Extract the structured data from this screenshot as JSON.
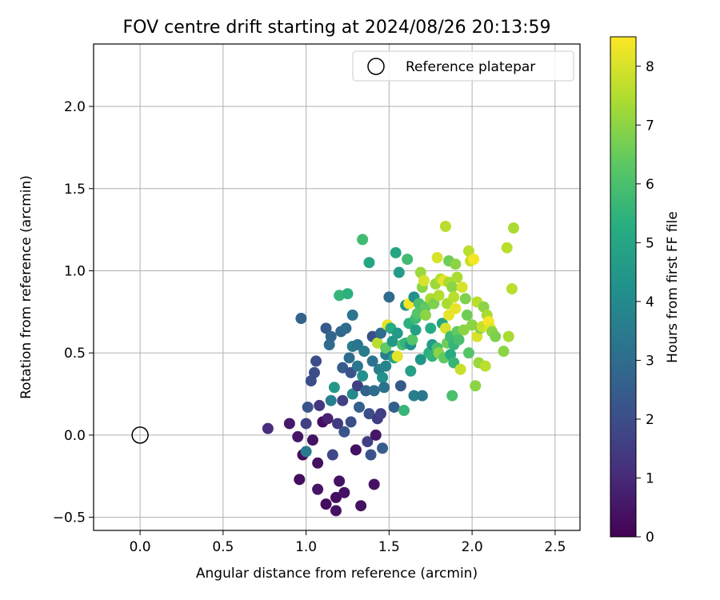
{
  "chart_data": {
    "type": "scatter",
    "title": "FOV centre drift starting at 2024/08/26 20:13:59",
    "xlabel": "Angular distance from reference (arcmin)",
    "ylabel": "Rotation from reference (arcmin)",
    "xlim": [
      -0.28,
      2.65
    ],
    "ylim": [
      -0.58,
      2.38
    ],
    "x_ticks": [
      0.0,
      0.5,
      1.0,
      1.5,
      2.0,
      2.5
    ],
    "x_tick_labels": [
      "0.0",
      "0.5",
      "1.0",
      "1.5",
      "2.0",
      "2.5"
    ],
    "y_ticks": [
      -0.5,
      0.0,
      0.5,
      1.0,
      1.5,
      2.0
    ],
    "y_tick_labels": [
      "−0.5",
      "0.0",
      "0.5",
      "1.0",
      "1.5",
      "2.0"
    ],
    "grid": true,
    "legend": {
      "position": "top-right",
      "entries": [
        {
          "label": "Reference platepar",
          "marker": "open-circle"
        }
      ]
    },
    "reference_point": {
      "x": 0.0,
      "y": 0.0
    },
    "colorbar": {
      "label": "Hours from first FF file",
      "colormap": "viridis",
      "range": [
        0,
        8.5
      ],
      "ticks": [
        0,
        1,
        2,
        3,
        4,
        5,
        6,
        7,
        8
      ],
      "tick_labels": [
        "0",
        "1",
        "2",
        "3",
        "4",
        "5",
        "6",
        "7",
        "8"
      ]
    },
    "points": [
      {
        "x": 0.77,
        "y": 0.04,
        "h": 1.1
      },
      {
        "x": 0.9,
        "y": 0.07,
        "h": 0.6
      },
      {
        "x": 0.95,
        "y": -0.01,
        "h": 0.5
      },
      {
        "x": 0.96,
        "y": -0.27,
        "h": 0.3
      },
      {
        "x": 0.97,
        "y": 0.71,
        "h": 2.7
      },
      {
        "x": 0.98,
        "y": -0.12,
        "h": 0.3
      },
      {
        "x": 1.0,
        "y": 0.07,
        "h": 1.6
      },
      {
        "x": 1.01,
        "y": 0.17,
        "h": 2.2
      },
      {
        "x": 1.0,
        "y": -0.1,
        "h": 3.5
      },
      {
        "x": 1.03,
        "y": 0.33,
        "h": 2.0
      },
      {
        "x": 1.04,
        "y": -0.03,
        "h": 0.4
      },
      {
        "x": 1.05,
        "y": 0.38,
        "h": 2.0
      },
      {
        "x": 1.06,
        "y": 0.45,
        "h": 2.0
      },
      {
        "x": 1.07,
        "y": -0.17,
        "h": 0.4
      },
      {
        "x": 1.07,
        "y": -0.33,
        "h": 0.5
      },
      {
        "x": 1.08,
        "y": 0.18,
        "h": 1.4
      },
      {
        "x": 1.1,
        "y": 0.08,
        "h": 0.3
      },
      {
        "x": 1.12,
        "y": 0.65,
        "h": 2.4
      },
      {
        "x": 1.12,
        "y": -0.42,
        "h": 0.3
      },
      {
        "x": 1.13,
        "y": 0.1,
        "h": 0.8
      },
      {
        "x": 1.14,
        "y": 0.55,
        "h": 3.0
      },
      {
        "x": 1.15,
        "y": 0.6,
        "h": 2.8
      },
      {
        "x": 1.15,
        "y": 0.21,
        "h": 3.6
      },
      {
        "x": 1.16,
        "y": -0.12,
        "h": 1.8
      },
      {
        "x": 1.17,
        "y": 0.29,
        "h": 4.5
      },
      {
        "x": 1.18,
        "y": -0.38,
        "h": 0.3
      },
      {
        "x": 1.18,
        "y": -0.46,
        "h": 0.4
      },
      {
        "x": 1.19,
        "y": 0.07,
        "h": 1.4
      },
      {
        "x": 1.2,
        "y": -0.28,
        "h": 0.4
      },
      {
        "x": 1.2,
        "y": 0.85,
        "h": 5.6
      },
      {
        "x": 1.21,
        "y": 0.63,
        "h": 2.8
      },
      {
        "x": 1.22,
        "y": 0.41,
        "h": 2.5
      },
      {
        "x": 1.22,
        "y": 0.21,
        "h": 1.6
      },
      {
        "x": 1.23,
        "y": -0.35,
        "h": 0.4
      },
      {
        "x": 1.23,
        "y": 0.02,
        "h": 2.2
      },
      {
        "x": 1.24,
        "y": 0.65,
        "h": 3.0
      },
      {
        "x": 1.25,
        "y": 0.86,
        "h": 5.4
      },
      {
        "x": 1.26,
        "y": 0.47,
        "h": 3.0
      },
      {
        "x": 1.27,
        "y": 0.38,
        "h": 2.2
      },
      {
        "x": 1.27,
        "y": 0.08,
        "h": 2.0
      },
      {
        "x": 1.28,
        "y": 0.54,
        "h": 3.5
      },
      {
        "x": 1.28,
        "y": 0.25,
        "h": 4.0
      },
      {
        "x": 1.28,
        "y": 0.73,
        "h": 3.3
      },
      {
        "x": 1.3,
        "y": -0.09,
        "h": 0.4
      },
      {
        "x": 1.31,
        "y": 0.42,
        "h": 3.3
      },
      {
        "x": 1.31,
        "y": 0.55,
        "h": 3.3
      },
      {
        "x": 1.31,
        "y": 0.3,
        "h": 1.6
      },
      {
        "x": 1.32,
        "y": 0.17,
        "h": 2.6
      },
      {
        "x": 1.33,
        "y": -0.43,
        "h": 0.4
      },
      {
        "x": 1.34,
        "y": 1.19,
        "h": 5.8
      },
      {
        "x": 1.34,
        "y": 0.36,
        "h": 4.2
      },
      {
        "x": 1.35,
        "y": 0.51,
        "h": 3.5
      },
      {
        "x": 1.36,
        "y": 0.27,
        "h": 2.7
      },
      {
        "x": 1.37,
        "y": -0.04,
        "h": 1.6
      },
      {
        "x": 1.38,
        "y": 1.05,
        "h": 5.0
      },
      {
        "x": 1.38,
        "y": 0.13,
        "h": 2.0
      },
      {
        "x": 1.39,
        "y": -0.12,
        "h": 2.2
      },
      {
        "x": 1.4,
        "y": 0.6,
        "h": 2.0
      },
      {
        "x": 1.4,
        "y": 0.45,
        "h": 3.2
      },
      {
        "x": 1.41,
        "y": 0.27,
        "h": 3.0
      },
      {
        "x": 1.41,
        "y": -0.3,
        "h": 0.4
      },
      {
        "x": 1.42,
        "y": 0.0,
        "h": 0.5
      },
      {
        "x": 1.43,
        "y": 0.1,
        "h": 1.5
      },
      {
        "x": 1.43,
        "y": 0.56,
        "h": 7.6
      },
      {
        "x": 1.44,
        "y": 0.4,
        "h": 3.6
      },
      {
        "x": 1.45,
        "y": 0.62,
        "h": 3.0
      },
      {
        "x": 1.45,
        "y": 0.13,
        "h": 1.6
      },
      {
        "x": 1.46,
        "y": 0.35,
        "h": 4.2
      },
      {
        "x": 1.46,
        "y": -0.08,
        "h": 2.5
      },
      {
        "x": 1.47,
        "y": 0.29,
        "h": 3.2
      },
      {
        "x": 1.48,
        "y": 0.42,
        "h": 3.8
      },
      {
        "x": 1.48,
        "y": 0.49,
        "h": 3.6
      },
      {
        "x": 1.48,
        "y": 0.53,
        "h": 6.4
      },
      {
        "x": 1.49,
        "y": 0.67,
        "h": 8.2
      },
      {
        "x": 1.5,
        "y": 0.84,
        "h": 3.0
      },
      {
        "x": 1.51,
        "y": 0.65,
        "h": 5.2
      },
      {
        "x": 1.52,
        "y": 0.48,
        "h": 3.4
      },
      {
        "x": 1.52,
        "y": 0.57,
        "h": 4.5
      },
      {
        "x": 1.53,
        "y": 0.47,
        "h": 5.0
      },
      {
        "x": 1.53,
        "y": 0.17,
        "h": 2.6
      },
      {
        "x": 1.54,
        "y": 1.11,
        "h": 5.0
      },
      {
        "x": 1.55,
        "y": 0.48,
        "h": 8.2
      },
      {
        "x": 1.55,
        "y": 0.62,
        "h": 4.6
      },
      {
        "x": 1.56,
        "y": 0.99,
        "h": 4.6
      },
      {
        "x": 1.57,
        "y": 0.3,
        "h": 2.4
      },
      {
        "x": 1.58,
        "y": 0.55,
        "h": 6.0
      },
      {
        "x": 1.59,
        "y": 0.15,
        "h": 5.6
      },
      {
        "x": 1.6,
        "y": 0.79,
        "h": 4.4
      },
      {
        "x": 1.6,
        "y": 0.56,
        "h": 5.5
      },
      {
        "x": 1.61,
        "y": 1.07,
        "h": 5.8
      },
      {
        "x": 1.62,
        "y": 0.8,
        "h": 8.4
      },
      {
        "x": 1.62,
        "y": 0.68,
        "h": 5.4
      },
      {
        "x": 1.63,
        "y": 0.39,
        "h": 4.8
      },
      {
        "x": 1.63,
        "y": 0.55,
        "h": 4.2
      },
      {
        "x": 1.64,
        "y": 0.58,
        "h": 6.2
      },
      {
        "x": 1.65,
        "y": 0.84,
        "h": 4.2
      },
      {
        "x": 1.65,
        "y": 0.24,
        "h": 3.6
      },
      {
        "x": 1.66,
        "y": 0.71,
        "h": 5.8
      },
      {
        "x": 1.66,
        "y": 0.64,
        "h": 4.8
      },
      {
        "x": 1.67,
        "y": 0.74,
        "h": 6.2
      },
      {
        "x": 1.68,
        "y": 0.8,
        "h": 6.0
      },
      {
        "x": 1.69,
        "y": 0.46,
        "h": 4.4
      },
      {
        "x": 1.69,
        "y": 0.99,
        "h": 7.2
      },
      {
        "x": 1.7,
        "y": 0.9,
        "h": 7.0
      },
      {
        "x": 1.7,
        "y": 0.24,
        "h": 3.4
      },
      {
        "x": 1.71,
        "y": 0.94,
        "h": 8.0
      },
      {
        "x": 1.72,
        "y": 0.78,
        "h": 6.4
      },
      {
        "x": 1.72,
        "y": 0.73,
        "h": 7.0
      },
      {
        "x": 1.74,
        "y": 0.5,
        "h": 5.4
      },
      {
        "x": 1.75,
        "y": 0.65,
        "h": 5.2
      },
      {
        "x": 1.75,
        "y": 0.83,
        "h": 7.4
      },
      {
        "x": 1.76,
        "y": 0.55,
        "h": 4.6
      },
      {
        "x": 1.76,
        "y": 0.48,
        "h": 5.5
      },
      {
        "x": 1.77,
        "y": 0.8,
        "h": 6.8
      },
      {
        "x": 1.78,
        "y": 0.92,
        "h": 7.2
      },
      {
        "x": 1.79,
        "y": 0.53,
        "h": 6.0
      },
      {
        "x": 1.79,
        "y": 1.08,
        "h": 8.0
      },
      {
        "x": 1.8,
        "y": 0.85,
        "h": 7.5
      },
      {
        "x": 1.8,
        "y": 0.5,
        "h": 7.0
      },
      {
        "x": 1.81,
        "y": 0.95,
        "h": 7.6
      },
      {
        "x": 1.82,
        "y": 0.68,
        "h": 5.0
      },
      {
        "x": 1.83,
        "y": 0.94,
        "h": 8.2
      },
      {
        "x": 1.83,
        "y": 0.47,
        "h": 6.4
      },
      {
        "x": 1.84,
        "y": 1.27,
        "h": 7.6
      },
      {
        "x": 1.84,
        "y": 0.65,
        "h": 8.0
      },
      {
        "x": 1.85,
        "y": 0.8,
        "h": 7.4
      },
      {
        "x": 1.85,
        "y": 0.56,
        "h": 6.6
      },
      {
        "x": 1.86,
        "y": 1.06,
        "h": 6.6
      },
      {
        "x": 1.86,
        "y": 0.93,
        "h": 7.4
      },
      {
        "x": 1.86,
        "y": 0.73,
        "h": 8.2
      },
      {
        "x": 1.87,
        "y": 0.6,
        "h": 5.8
      },
      {
        "x": 1.87,
        "y": 0.49,
        "h": 5.2
      },
      {
        "x": 1.88,
        "y": 0.9,
        "h": 7.0
      },
      {
        "x": 1.88,
        "y": 0.24,
        "h": 6.0
      },
      {
        "x": 1.89,
        "y": 0.84,
        "h": 7.6
      },
      {
        "x": 1.89,
        "y": 0.55,
        "h": 5.6
      },
      {
        "x": 1.89,
        "y": 0.44,
        "h": 5.6
      },
      {
        "x": 1.9,
        "y": 0.77,
        "h": 8.2
      },
      {
        "x": 1.9,
        "y": 1.04,
        "h": 7.0
      },
      {
        "x": 1.91,
        "y": 0.96,
        "h": 7.4
      },
      {
        "x": 1.91,
        "y": 0.63,
        "h": 6.4
      },
      {
        "x": 1.92,
        "y": 0.58,
        "h": 6.0
      },
      {
        "x": 1.93,
        "y": 0.4,
        "h": 7.8
      },
      {
        "x": 1.94,
        "y": 0.9,
        "h": 8.0
      },
      {
        "x": 1.95,
        "y": 0.64,
        "h": 7.0
      },
      {
        "x": 1.96,
        "y": 0.83,
        "h": 6.8
      },
      {
        "x": 1.97,
        "y": 0.73,
        "h": 6.6
      },
      {
        "x": 1.98,
        "y": 1.12,
        "h": 7.6
      },
      {
        "x": 1.98,
        "y": 0.5,
        "h": 6.2
      },
      {
        "x": 1.99,
        "y": 1.06,
        "h": 7.8
      },
      {
        "x": 2.0,
        "y": 0.67,
        "h": 7.0
      },
      {
        "x": 2.01,
        "y": 1.07,
        "h": 8.4
      },
      {
        "x": 2.02,
        "y": 0.3,
        "h": 7.0
      },
      {
        "x": 2.03,
        "y": 0.81,
        "h": 7.6
      },
      {
        "x": 2.03,
        "y": 0.6,
        "h": 8.0
      },
      {
        "x": 2.04,
        "y": 0.44,
        "h": 7.2
      },
      {
        "x": 2.05,
        "y": 0.65,
        "h": 6.8
      },
      {
        "x": 2.06,
        "y": 0.66,
        "h": 7.8
      },
      {
        "x": 2.07,
        "y": 0.78,
        "h": 7.0
      },
      {
        "x": 2.08,
        "y": 0.42,
        "h": 7.6
      },
      {
        "x": 2.09,
        "y": 0.73,
        "h": 7.4
      },
      {
        "x": 2.1,
        "y": 0.69,
        "h": 8.4
      },
      {
        "x": 2.11,
        "y": 0.65,
        "h": 8.2
      },
      {
        "x": 2.12,
        "y": 0.63,
        "h": 7.0
      },
      {
        "x": 2.14,
        "y": 0.6,
        "h": 6.8
      },
      {
        "x": 2.19,
        "y": 0.51,
        "h": 7.0
      },
      {
        "x": 2.21,
        "y": 1.14,
        "h": 7.6
      },
      {
        "x": 2.22,
        "y": 0.6,
        "h": 7.4
      },
      {
        "x": 2.24,
        "y": 0.89,
        "h": 7.6
      },
      {
        "x": 2.25,
        "y": 1.26,
        "h": 7.4
      }
    ]
  }
}
